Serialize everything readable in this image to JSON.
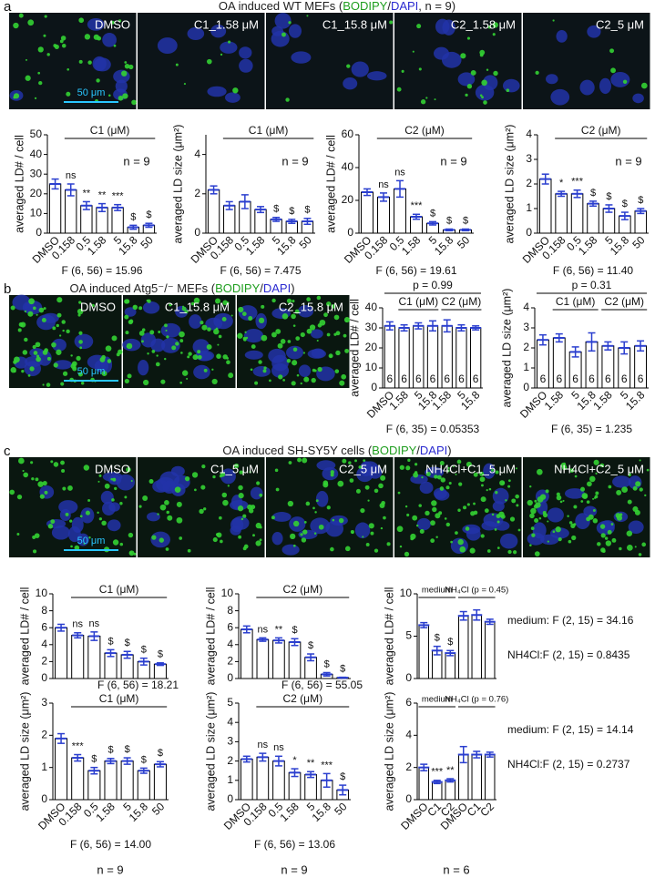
{
  "panel_labels": [
    "a",
    "b",
    "c"
  ],
  "titles": [
    [
      {
        "text": "OA induced WT MEFs (",
        "color": "#222222"
      },
      {
        "text": "BODIPY",
        "color": "#1f9e1f"
      },
      {
        "text": "/",
        "color": "#222222"
      },
      {
        "text": "DAPI",
        "color": "#2a2ad0"
      },
      {
        "text": ", n = 9)",
        "color": "#222222"
      }
    ],
    [
      {
        "text": "OA induced Atg5⁻/⁻ MEFs (",
        "color": "#222222"
      },
      {
        "text": "BODIPY",
        "color": "#1f9e1f"
      },
      {
        "text": "/",
        "color": "#222222"
      },
      {
        "text": "DAPI",
        "color": "#2a2ad0"
      },
      {
        "text": ")",
        "color": "#222222"
      }
    ],
    [
      {
        "text": "OA induced SH-SY5Y cells (",
        "color": "#222222"
      },
      {
        "text": "BODIPY",
        "color": "#1f9e1f"
      },
      {
        "text": "/",
        "color": "#222222"
      },
      {
        "text": "DAPI",
        "color": "#2a2ad0"
      },
      {
        "text": ")",
        "color": "#222222"
      }
    ]
  ],
  "images": [
    {
      "labels": [
        "DMSO",
        "C1_1.58 μM",
        "C1_15.8 μM",
        "C2_1.58 μM",
        "C2_5 μM"
      ],
      "scale_bar": "50 μm"
    },
    {
      "labels": [
        "DMSO",
        "C1_15.8 μM",
        "C2_15.8 μM"
      ],
      "scale_bar": "50 μm"
    },
    {
      "labels": [
        "DMSO",
        "C1_5 μM",
        "C2_5 μM",
        "NH4Cl+C1_5 μM",
        "NH4Cl+C2_5 μM"
      ],
      "scale_bar": "50 μm"
    }
  ],
  "chart_data": [
    {
      "type": "bar",
      "ylabel": "averaged LD# / cell",
      "ylim": [
        0,
        50
      ],
      "yticks": [
        0,
        10,
        20,
        30,
        40,
        50
      ],
      "categories": [
        "DMSO",
        "0.158",
        "0.5",
        "1.58",
        "5",
        "15.8",
        "50"
      ],
      "values": [
        25,
        22,
        14,
        13,
        13,
        3,
        4
      ],
      "errors": [
        2.5,
        3,
        2,
        2,
        1.5,
        1,
        1
      ],
      "stat_labels": [
        null,
        "ns",
        "**",
        "**",
        "***",
        "$",
        "$"
      ],
      "groups": [
        {
          "label": "C1 (μM)",
          "from": 1,
          "to": 6
        }
      ],
      "n_label": "n = 9",
      "stat_text": "F (6, 56) = 15.96"
    },
    {
      "type": "bar",
      "ylabel": "averaged LD size (μm²)",
      "ylim": [
        0,
        5
      ],
      "yticks": [
        0,
        2,
        4
      ],
      "categories": [
        "DMSO",
        "0.158",
        "0.5",
        "1.58",
        "5",
        "15.8",
        "50"
      ],
      "values": [
        2.2,
        1.4,
        1.6,
        1.2,
        0.7,
        0.6,
        0.6
      ],
      "errors": [
        0.2,
        0.2,
        0.35,
        0.15,
        0.1,
        0.1,
        0.15
      ],
      "stat_labels": [
        null,
        null,
        null,
        null,
        "$",
        "$",
        "$"
      ],
      "groups": [
        {
          "label": "C1 (μM)",
          "from": 1,
          "to": 6
        }
      ],
      "n_label": "n = 9",
      "stat_text": "F (6, 56) = 7.475"
    },
    {
      "type": "bar",
      "ylabel": "averaged LD# / cell",
      "ylim": [
        0,
        60
      ],
      "yticks": [
        0,
        20,
        40,
        60
      ],
      "categories": [
        "DMSO",
        "0.158",
        "0.5",
        "1.58",
        "5",
        "15.8",
        "50"
      ],
      "values": [
        25,
        22,
        27,
        10,
        6,
        2,
        2
      ],
      "errors": [
        2,
        2.5,
        5,
        1.5,
        1,
        0.5,
        0.5
      ],
      "stat_labels": [
        null,
        "ns",
        "ns",
        "***",
        "$",
        "$",
        "$"
      ],
      "groups": [
        {
          "label": "C2 (μM)",
          "from": 1,
          "to": 6
        }
      ],
      "n_label": "n = 9",
      "stat_text": "F (6, 56) = 19.61"
    },
    {
      "type": "bar",
      "ylabel": "averaged LD size (μm²)",
      "ylim": [
        0,
        4
      ],
      "yticks": [
        0,
        1,
        2,
        3,
        4
      ],
      "categories": [
        "DMSO",
        "0.158",
        "0.5",
        "1.58",
        "5",
        "15.8",
        "50"
      ],
      "values": [
        2.2,
        1.6,
        1.6,
        1.2,
        1.0,
        0.7,
        0.9
      ],
      "errors": [
        0.2,
        0.1,
        0.15,
        0.1,
        0.15,
        0.15,
        0.1
      ],
      "stat_labels": [
        null,
        "*",
        "***",
        "$",
        "$",
        "$",
        "$"
      ],
      "groups": [
        {
          "label": "C2 (μM)",
          "from": 1,
          "to": 6
        }
      ],
      "n_label": "n = 9",
      "stat_text": "F (6, 56) = 11.40"
    },
    {
      "type": "bar",
      "ylabel": "averaged LD# / cell",
      "ylim": [
        0,
        40
      ],
      "yticks": [
        0,
        10,
        20,
        30,
        40
      ],
      "categories": [
        "DMSO",
        "1.58",
        "5",
        "15.8",
        "1.58",
        "5",
        "15.8"
      ],
      "values": [
        31,
        30,
        31,
        31,
        31,
        30,
        30
      ],
      "errors": [
        2,
        1.5,
        1.5,
        2.5,
        3,
        1.5,
        1
      ],
      "bar_labels": [
        "6",
        "6",
        "6",
        "6",
        "6",
        "6",
        "6"
      ],
      "groups": [
        {
          "label": "C1 (μM)",
          "from": 1,
          "to": 3
        },
        {
          "label": "C2 (μM)",
          "from": 4,
          "to": 6
        }
      ],
      "top_bracket": "p = 0.99",
      "stat_text": "F (6, 35) = 0.05353"
    },
    {
      "type": "bar",
      "ylabel": "averaged LD size (μm²)",
      "ylim": [
        0,
        4
      ],
      "yticks": [
        0,
        1,
        2,
        3,
        4
      ],
      "categories": [
        "DMSO",
        "1.58",
        "5",
        "15.8",
        "1.58",
        "5",
        "15.8"
      ],
      "values": [
        2.4,
        2.5,
        1.8,
        2.3,
        2.1,
        2.0,
        2.1
      ],
      "errors": [
        0.25,
        0.2,
        0.25,
        0.45,
        0.2,
        0.3,
        0.25
      ],
      "bar_labels": [
        "6",
        "6",
        "6",
        "6",
        "6",
        "6",
        "6"
      ],
      "groups": [
        {
          "label": "C1 (μM)",
          "from": 1,
          "to": 3
        },
        {
          "label": "C2 (μM)",
          "from": 4,
          "to": 6
        }
      ],
      "top_bracket": "p = 0.31",
      "stat_text": "F (6, 35) = 1.235"
    },
    {
      "type": "bar",
      "ylabel": "averaged LD# / cell",
      "ylim": [
        0,
        10
      ],
      "yticks": [
        0,
        2,
        4,
        6,
        8,
        10
      ],
      "values": [
        6,
        5.1,
        5,
        3,
        2.8,
        2,
        1.7
      ],
      "errors": [
        0.4,
        0.3,
        0.5,
        0.4,
        0.4,
        0.4,
        0.15
      ],
      "stat_labels": [
        null,
        "ns",
        "ns",
        "$",
        "$",
        "$",
        "$"
      ],
      "groups": [
        {
          "label": "C1 (μM)",
          "from": 1,
          "to": 6
        }
      ],
      "stat_text": "F (6, 56) = 18.21"
    },
    {
      "type": "bar",
      "ylabel": "averaged LD# / cell",
      "ylim": [
        0,
        10
      ],
      "yticks": [
        0,
        2,
        4,
        6,
        8,
        10
      ],
      "values": [
        5.8,
        4.6,
        4.5,
        4.3,
        2.5,
        0.5,
        0.1
      ],
      "errors": [
        0.4,
        0.2,
        0.3,
        0.4,
        0.4,
        0.2,
        0.05
      ],
      "stat_labels": [
        null,
        "ns",
        "**",
        "$",
        "$",
        "$",
        "$"
      ],
      "groups": [
        {
          "label": "C2 (μM)",
          "from": 1,
          "to": 6
        }
      ],
      "stat_text": "F (6, 56) = 55.05"
    },
    {
      "type": "bar",
      "ylabel": "averaged LD# / cell",
      "ylim": [
        0,
        10
      ],
      "yticks": [
        0,
        5,
        10
      ],
      "values": [
        6.3,
        3.3,
        3,
        7.4,
        7.5,
        6.7
      ],
      "errors": [
        0.3,
        0.5,
        0.3,
        0.5,
        0.6,
        0.3
      ],
      "stat_labels": [
        null,
        "$",
        "$",
        null,
        null,
        null
      ],
      "groups": [
        {
          "label": "medium",
          "from": 0,
          "to": 2
        },
        {
          "label": "NH₄Cl (p = 0.45)",
          "from": 3,
          "to": 5
        }
      ],
      "notes": [
        "medium: F (2, 15) = 34.16",
        "NH4Cl:F (2, 15) = 0.8435"
      ]
    },
    {
      "type": "bar",
      "ylabel": "averaged LD size (μm²)",
      "ylim": [
        0,
        3
      ],
      "yticks": [
        0,
        1,
        2,
        3
      ],
      "categories": [
        "DMSO",
        "0.158",
        "0.5",
        "1.58",
        "5",
        "15.8",
        "50"
      ],
      "values": [
        1.9,
        1.3,
        0.9,
        1.2,
        1.2,
        0.9,
        1.1
      ],
      "errors": [
        0.15,
        0.1,
        0.1,
        0.08,
        0.1,
        0.08,
        0.08
      ],
      "stat_labels": [
        null,
        "***",
        "$",
        "$",
        "$",
        "$",
        "$"
      ],
      "groups": [
        {
          "label": "C1 (μM)",
          "from": 1,
          "to": 6
        }
      ],
      "stat_text": "F (6, 56) = 14.00",
      "n_label": "n = 9"
    },
    {
      "type": "bar",
      "ylabel": "averaged LD size (μm²)",
      "ylim": [
        0,
        5
      ],
      "yticks": [
        0,
        1,
        2,
        3,
        4,
        5
      ],
      "categories": [
        "DMSO",
        "0.158",
        "0.5",
        "1.58",
        "5",
        "15.8",
        "50"
      ],
      "values": [
        2.1,
        2.2,
        2.0,
        1.4,
        1.3,
        1.0,
        0.5
      ],
      "errors": [
        0.15,
        0.2,
        0.25,
        0.2,
        0.15,
        0.35,
        0.25
      ],
      "stat_labels": [
        null,
        "ns",
        "ns",
        "*",
        "**",
        "***",
        "$"
      ],
      "groups": [
        {
          "label": "C2 (μM)",
          "from": 1,
          "to": 6
        }
      ],
      "stat_text": "F (6, 56) = 13.06",
      "n_label": "n = 9"
    },
    {
      "type": "bar",
      "ylabel": "averaged LD size (μm²)",
      "ylim": [
        0,
        6
      ],
      "yticks": [
        0,
        2,
        4,
        6
      ],
      "categories": [
        "DMSO",
        "C1",
        "C2",
        "DMSO",
        "C1",
        "C2"
      ],
      "values": [
        2.0,
        1.1,
        1.2,
        2.8,
        2.8,
        2.8
      ],
      "errors": [
        0.2,
        0.1,
        0.1,
        0.5,
        0.2,
        0.15
      ],
      "stat_labels": [
        null,
        "***",
        "**",
        null,
        null,
        null
      ],
      "groups": [
        {
          "label": "medium",
          "from": 0,
          "to": 2
        },
        {
          "label": "NH₄Cl (p = 0.76)",
          "from": 3,
          "to": 5
        }
      ],
      "notes": [
        "medium: F (2, 15) = 14.14",
        "NH4Cl:F (2, 15) = 0.2737"
      ],
      "n_label": "n = 6"
    }
  ]
}
